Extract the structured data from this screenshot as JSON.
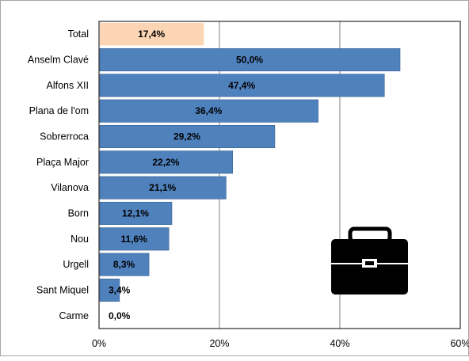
{
  "chart_data": {
    "type": "bar",
    "orientation": "horizontal",
    "categories": [
      "Total",
      "Anselm Clavé",
      "Alfons XII",
      "Plana de l'om",
      "Sobrerroca",
      "Plaça Major",
      "Vilanova",
      "Born",
      "Nou",
      "Urgell",
      "Sant Miquel",
      "Carme"
    ],
    "values": [
      17.4,
      50.0,
      47.4,
      36.4,
      29.2,
      22.2,
      21.1,
      12.1,
      11.6,
      8.3,
      3.4,
      0.0
    ],
    "value_labels": [
      "17,4%",
      "50,0%",
      "47,4%",
      "36,4%",
      "29,2%",
      "22,2%",
      "21,1%",
      "12,1%",
      "11,6%",
      "8,3%",
      "3,4%",
      "0,0%"
    ],
    "xlim": [
      0,
      60
    ],
    "xticks": [
      0,
      20,
      40,
      60
    ],
    "xtick_labels": [
      "0%",
      "20%",
      "40%",
      "60%"
    ],
    "grid": "vertical",
    "legend": "none",
    "colors": {
      "highlight": "#fcd5b4",
      "bar": "#4f81bd",
      "bar_edge": "#3a6390",
      "grid": "#808080"
    },
    "highlight_category": "Total",
    "icon": "briefcase-icon"
  }
}
